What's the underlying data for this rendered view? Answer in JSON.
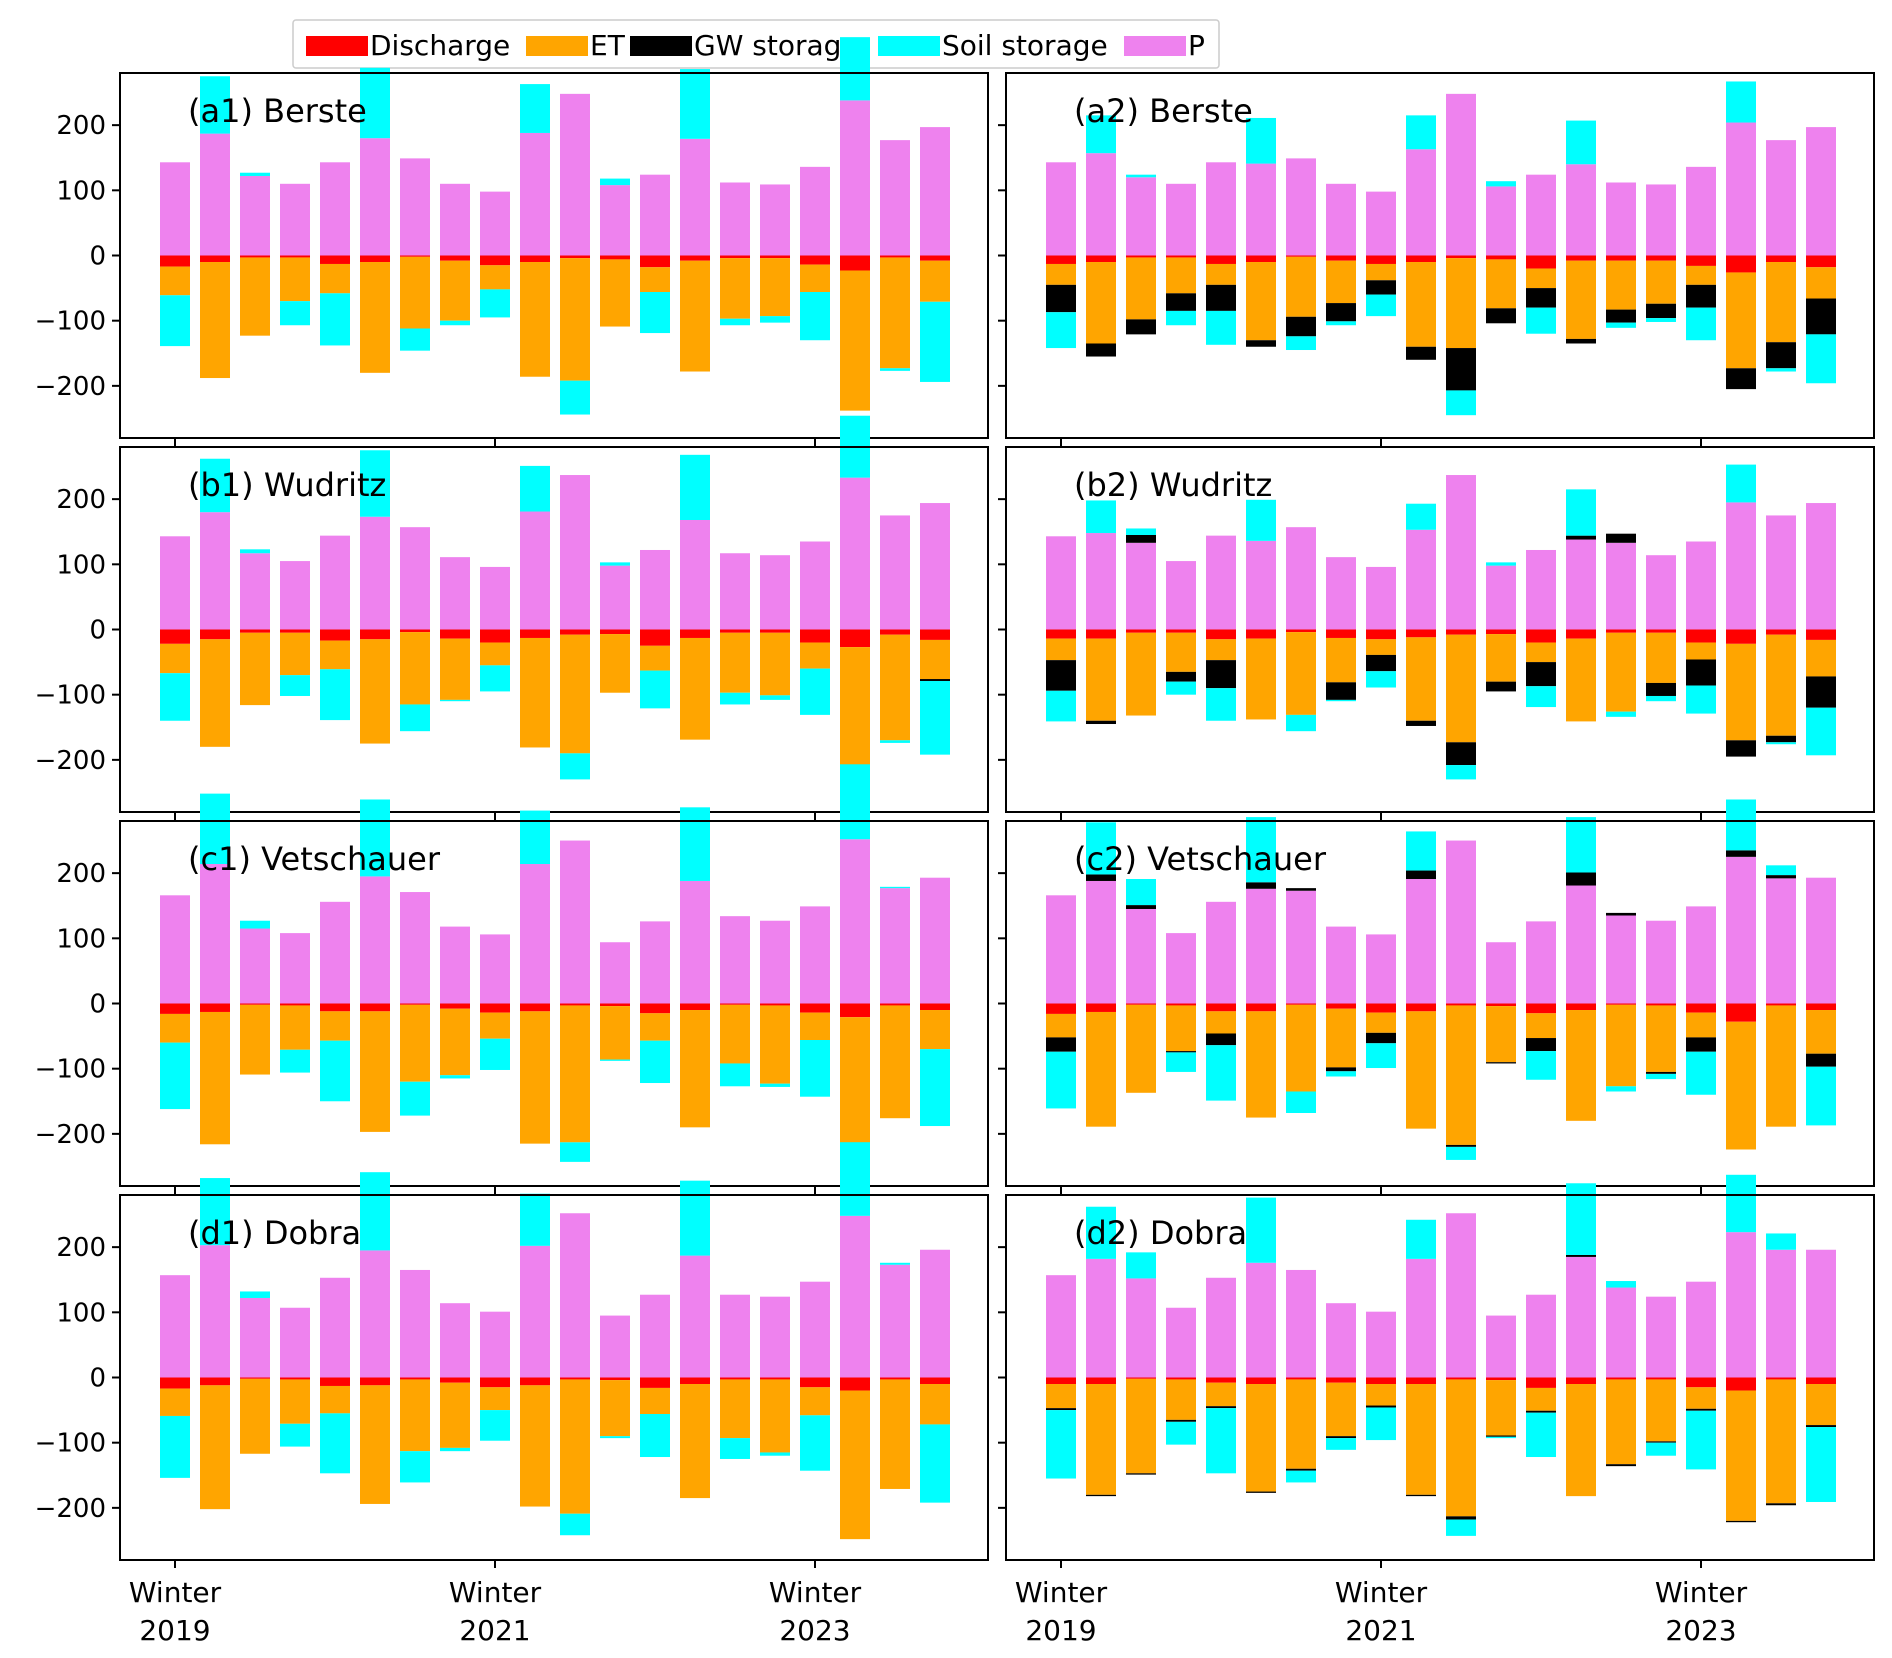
{
  "chart_data": {
    "type": "bar",
    "subtype": "stacked water balance (mm per season)",
    "legend": {
      "placement": "top-center",
      "items": [
        {
          "name": "Discharge",
          "color": "#ff0000"
        },
        {
          "name": "ET",
          "color": "#ffa500"
        },
        {
          "name": "GW storage",
          "color": "#000000"
        },
        {
          "name": "Soil storage",
          "color": "#00ffff"
        },
        {
          "name": "P",
          "color": "#ee82ee"
        }
      ]
    },
    "xaxis": {
      "tick_labels": [
        {
          "line1": "Winter",
          "line2": "2019",
          "season_index": 0
        },
        {
          "line1": "Winter",
          "line2": "2021",
          "season_index": 8
        },
        {
          "line1": "Winter",
          "line2": "2023",
          "season_index": 16
        }
      ]
    },
    "yaxis": {
      "ylim": [
        -280,
        280
      ],
      "ticks": [
        -200,
        -100,
        0,
        100,
        200
      ]
    },
    "panels": [
      {
        "title": "(a1) Berste",
        "P": [
          143,
          187,
          122,
          110,
          143,
          180,
          149,
          110,
          98,
          188,
          248,
          108,
          124,
          179,
          112,
          109,
          136,
          238,
          177,
          197
        ],
        "Discharge": [
          -17,
          -10,
          -3,
          -3,
          -13,
          -10,
          -2,
          -8,
          -15,
          -10,
          -4,
          -6,
          -18,
          -8,
          -4,
          -4,
          -14,
          -23,
          -3,
          -8
        ],
        "ET": [
          -44,
          -178,
          -120,
          -67,
          -45,
          -170,
          -110,
          -92,
          -37,
          -176,
          -188,
          -103,
          -38,
          -170,
          -93,
          -89,
          -42,
          -215,
          -170,
          -63
        ],
        "GW": [
          0,
          0,
          0,
          0,
          0,
          0,
          0,
          0,
          0,
          0,
          0,
          0,
          0,
          0,
          0,
          0,
          0,
          0,
          0,
          0
        ],
        "Soil": [
          -78,
          88,
          5,
          -37,
          -80,
          108,
          -34,
          -7,
          -43,
          75,
          -52,
          10,
          -63,
          107,
          -10,
          -10,
          -74,
          97,
          -4,
          -123
        ]
      },
      {
        "title": "(a2) Berste",
        "P": [
          143,
          157,
          120,
          110,
          143,
          141,
          149,
          110,
          98,
          163,
          248,
          106,
          124,
          140,
          112,
          109,
          136,
          204,
          177,
          197
        ],
        "Discharge": [
          -13,
          -10,
          -3,
          -3,
          -13,
          -10,
          -2,
          -8,
          -13,
          -10,
          -4,
          -6,
          -20,
          -8,
          -8,
          -8,
          -16,
          -26,
          -10,
          -18
        ],
        "ET": [
          -32,
          -125,
          -95,
          -55,
          -32,
          -120,
          -92,
          -65,
          -25,
          -130,
          -138,
          -75,
          -30,
          -120,
          -75,
          -66,
          -29,
          -147,
          -123,
          -48
        ],
        "GW": [
          -42,
          -20,
          -23,
          -27,
          -40,
          -10,
          -30,
          -28,
          -22,
          -20,
          -65,
          -23,
          -30,
          -7,
          -20,
          -22,
          -35,
          -32,
          -40,
          -55
        ],
        "Soil": [
          -55,
          58,
          4,
          -22,
          -52,
          70,
          -21,
          -6,
          -33,
          52,
          -38,
          8,
          -40,
          67,
          -8,
          -6,
          -50,
          63,
          -5,
          -75
        ]
      },
      {
        "title": "(b1) Wudritz",
        "P": [
          143,
          180,
          117,
          105,
          144,
          173,
          157,
          111,
          96,
          181,
          237,
          98,
          122,
          168,
          117,
          114,
          135,
          233,
          175,
          194
        ],
        "Discharge": [
          -22,
          -15,
          -5,
          -5,
          -17,
          -15,
          -4,
          -14,
          -20,
          -13,
          -8,
          -7,
          -25,
          -13,
          -5,
          -5,
          -20,
          -27,
          -8,
          -16
        ],
        "ET": [
          -45,
          -165,
          -111,
          -65,
          -44,
          -160,
          -111,
          -94,
          -35,
          -168,
          -182,
          -90,
          -38,
          -156,
          -92,
          -96,
          -40,
          -206,
          -162,
          -60
        ],
        "GW": [
          0,
          0,
          0,
          0,
          0,
          0,
          0,
          0,
          0,
          0,
          0,
          0,
          0,
          0,
          0,
          0,
          0,
          0,
          0,
          -3
        ],
        "Soil": [
          -73,
          82,
          6,
          -32,
          -78,
          102,
          -41,
          -2,
          -40,
          70,
          -40,
          5,
          -58,
          100,
          -18,
          -7,
          -71,
          95,
          -4,
          -113
        ]
      },
      {
        "title": "(b2) Wudritz",
        "P": [
          143,
          148,
          133,
          105,
          144,
          136,
          157,
          111,
          96,
          153,
          237,
          98,
          122,
          138,
          133,
          114,
          135,
          195,
          175,
          194
        ],
        "Discharge": [
          -14,
          -14,
          -5,
          -5,
          -15,
          -14,
          -4,
          -13,
          -15,
          -12,
          -8,
          -7,
          -20,
          -14,
          -5,
          -5,
          -20,
          -22,
          -8,
          -16
        ],
        "ET": [
          -33,
          -126,
          -127,
          -60,
          -32,
          -124,
          -127,
          -68,
          -24,
          -128,
          -165,
          -73,
          -30,
          -127,
          -121,
          -77,
          -26,
          -148,
          -155,
          -56
        ],
        "GW": [
          -47,
          -5,
          12,
          -15,
          -43,
          0,
          0,
          -27,
          -25,
          -8,
          -35,
          -15,
          -37,
          6,
          14,
          -20,
          -40,
          -25,
          -10,
          -48
        ],
        "Soil": [
          -47,
          50,
          10,
          -20,
          -50,
          63,
          -25,
          -2,
          -25,
          40,
          -22,
          5,
          -32,
          71,
          -8,
          -8,
          -43,
          58,
          -3,
          -73
        ]
      },
      {
        "title": "(c1) Vetschauer",
        "P": [
          166,
          214,
          115,
          108,
          156,
          195,
          171,
          118,
          106,
          214,
          250,
          94,
          126,
          188,
          134,
          127,
          149,
          252,
          177,
          193
        ],
        "Discharge": [
          -16,
          -13,
          -2,
          -3,
          -12,
          -12,
          -2,
          -8,
          -14,
          -12,
          -3,
          -4,
          -15,
          -10,
          -2,
          -3,
          -14,
          -21,
          -3,
          -10
        ],
        "ET": [
          -44,
          -203,
          -107,
          -68,
          -45,
          -185,
          -118,
          -102,
          -40,
          -203,
          -210,
          -82,
          -42,
          -180,
          -90,
          -120,
          -42,
          -232,
          -173,
          -60
        ],
        "GW": [
          0,
          0,
          0,
          0,
          0,
          0,
          0,
          0,
          0,
          0,
          0,
          0,
          0,
          0,
          0,
          0,
          0,
          0,
          0,
          0
        ],
        "Soil": [
          -102,
          108,
          12,
          -35,
          -93,
          118,
          -52,
          -5,
          -48,
          82,
          -30,
          -2,
          -65,
          113,
          -35,
          -5,
          -87,
          115,
          2,
          -118
        ]
      },
      {
        "title": "(c2) Vetschauer",
        "P": [
          166,
          188,
          145,
          108,
          156,
          176,
          173,
          118,
          106,
          191,
          250,
          94,
          126,
          181,
          135,
          127,
          149,
          225,
          192,
          193
        ],
        "Discharge": [
          -16,
          -13,
          -2,
          -3,
          -12,
          -12,
          -2,
          -8,
          -14,
          -12,
          -3,
          -4,
          -15,
          -10,
          -2,
          -3,
          -14,
          -28,
          -3,
          -10
        ],
        "ET": [
          -36,
          -176,
          -135,
          -70,
          -34,
          -163,
          -133,
          -90,
          -31,
          -180,
          -214,
          -86,
          -38,
          -170,
          -125,
          -102,
          -38,
          -196,
          -186,
          -67
        ],
        "GW": [
          -22,
          10,
          6,
          -2,
          -18,
          10,
          4,
          -6,
          -16,
          13,
          -3,
          -2,
          -20,
          20,
          4,
          -3,
          -22,
          10,
          5,
          -20
        ],
        "Soil": [
          -87,
          80,
          40,
          -30,
          -85,
          100,
          -33,
          -8,
          -38,
          60,
          -20,
          0,
          -44,
          85,
          -8,
          -8,
          -66,
          78,
          15,
          -90
        ]
      },
      {
        "title": "(d1) Dobra",
        "P": [
          157,
          203,
          122,
          107,
          153,
          195,
          165,
          114,
          101,
          202,
          252,
          95,
          127,
          187,
          127,
          124,
          147,
          248,
          173,
          196
        ],
        "Discharge": [
          -17,
          -12,
          -2,
          -3,
          -13,
          -12,
          -3,
          -8,
          -15,
          -12,
          -3,
          -4,
          -16,
          -10,
          -3,
          -3,
          -15,
          -20,
          -3,
          -10
        ],
        "ET": [
          -42,
          -190,
          -115,
          -68,
          -42,
          -182,
          -110,
          -100,
          -35,
          -186,
          -206,
          -86,
          -40,
          -175,
          -90,
          -112,
          -43,
          -228,
          -168,
          -62
        ],
        "GW": [
          0,
          0,
          0,
          0,
          0,
          0,
          0,
          0,
          0,
          0,
          0,
          0,
          0,
          0,
          0,
          0,
          0,
          0,
          0,
          0
        ],
        "Soil": [
          -95,
          103,
          10,
          -35,
          -92,
          120,
          -48,
          -5,
          -47,
          80,
          -33,
          -3,
          -66,
          115,
          -32,
          -5,
          -85,
          113,
          3,
          -120
        ]
      },
      {
        "title": "(d2) Dobra",
        "P": [
          157,
          182,
          152,
          107,
          153,
          176,
          165,
          114,
          101,
          182,
          252,
          95,
          127,
          185,
          138,
          124,
          147,
          223,
          196,
          196
        ],
        "Discharge": [
          -10,
          -10,
          -2,
          -3,
          -8,
          -10,
          -3,
          -8,
          -10,
          -10,
          -3,
          -4,
          -16,
          -10,
          -3,
          -3,
          -15,
          -20,
          -3,
          -10
        ],
        "ET": [
          -37,
          -170,
          -145,
          -62,
          -36,
          -165,
          -137,
          -82,
          -33,
          -170,
          -210,
          -85,
          -35,
          -172,
          -130,
          -95,
          -33,
          -200,
          -190,
          -63
        ],
        "GW": [
          -3,
          -2,
          -2,
          -3,
          -3,
          -2,
          -3,
          -3,
          -3,
          -2,
          -5,
          -2,
          -3,
          3,
          -3,
          -2,
          -3,
          -2,
          -3,
          -3
        ],
        "Soil": [
          -105,
          80,
          40,
          -35,
          -100,
          100,
          -18,
          -18,
          -50,
          60,
          -25,
          -2,
          -68,
          110,
          10,
          -20,
          -90,
          88,
          25,
          -115
        ]
      }
    ]
  }
}
